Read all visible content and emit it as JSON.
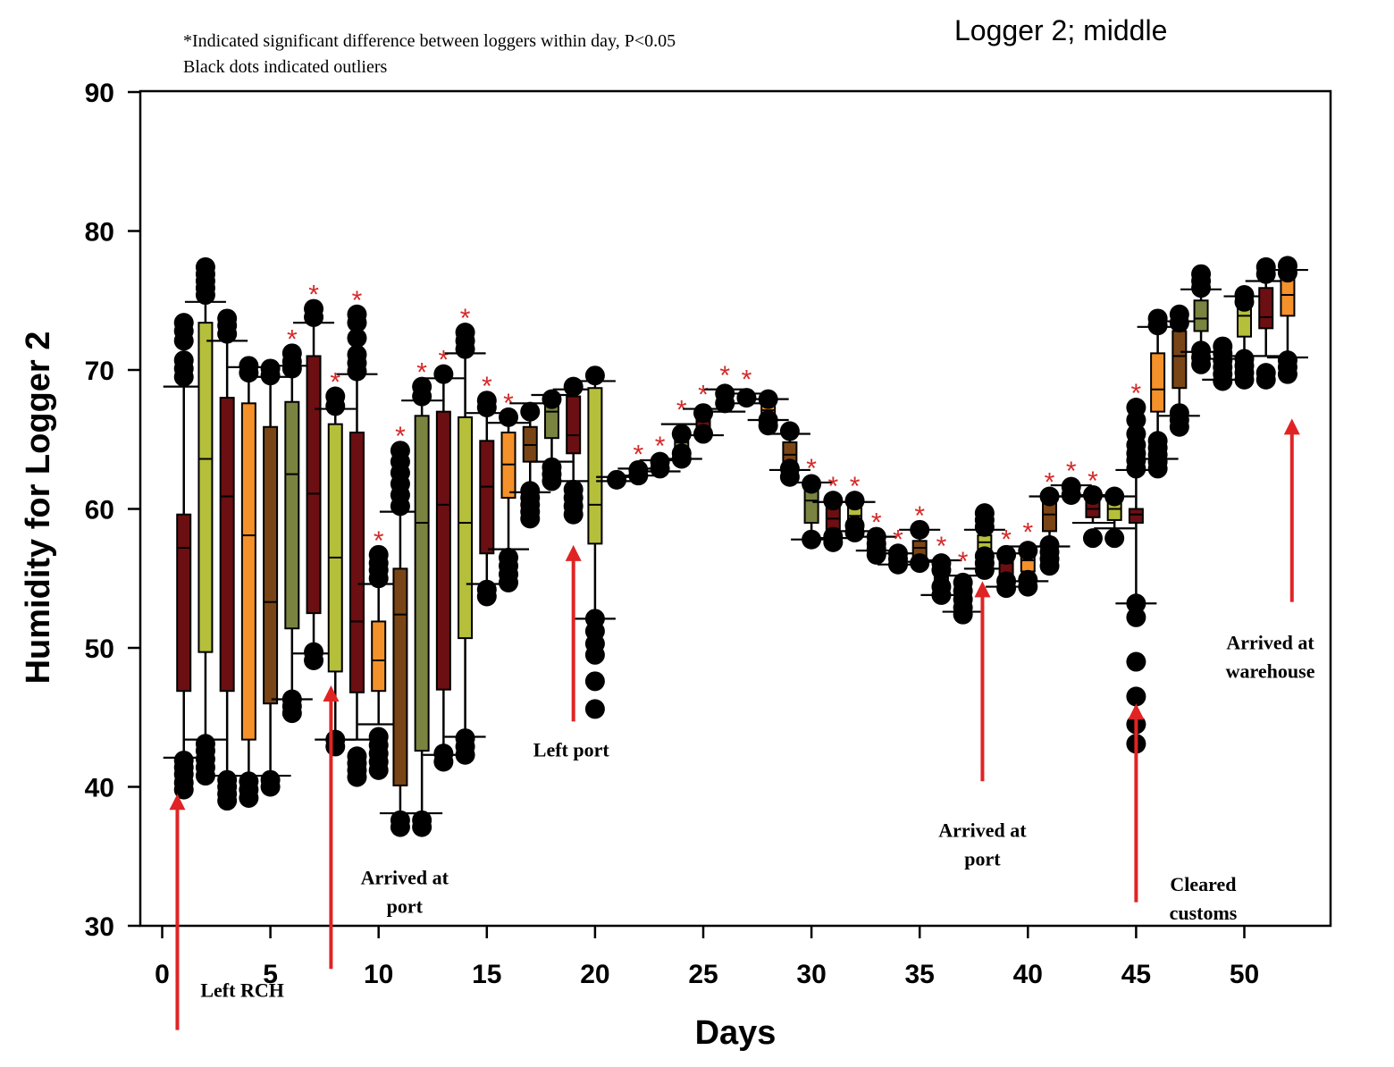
{
  "chart_data": {
    "type": "box",
    "title": "Logger 2; middle",
    "notes": [
      "*Indicated significant difference between loggers within day, P<0.05",
      "Black dots indicated outliers"
    ],
    "xlabel": "Days",
    "ylabel": "Humidity for Logger 2",
    "xlim": [
      -1,
      54
    ],
    "ylim": [
      30,
      90
    ],
    "xticks": [
      0,
      5,
      10,
      15,
      20,
      25,
      30,
      35,
      40,
      45,
      50
    ],
    "yticks": [
      30,
      40,
      50,
      60,
      70,
      80,
      90
    ],
    "colors": {
      "maroon": "#6b0f12",
      "olive_light": "#b5bf3a",
      "orange": "#f5912a",
      "brown": "#7a4516",
      "olive": "#7a8440",
      "star": "#d42a2a",
      "arrow": "#e02424",
      "outlier": "#000000"
    },
    "boxes": [
      {
        "day": 1,
        "color": "maroon",
        "lw": 42.1,
        "q1": 46.9,
        "median": 57.2,
        "q3": 59.6,
        "uw": 68.8,
        "outliers": [
          39.8,
          40.3,
          40.9,
          41.4,
          41.9,
          69.5,
          70.1,
          70.7,
          72.1,
          72.8,
          73.4
        ],
        "star": false
      },
      {
        "day": 2,
        "color": "olive_light",
        "lw": 43.4,
        "q1": 49.7,
        "median": 63.6,
        "q3": 73.4,
        "uw": 74.9,
        "outliers": [
          40.8,
          41.4,
          42.0,
          42.6,
          43.1,
          75.4,
          75.9,
          76.4,
          76.9,
          77.4
        ],
        "star": false
      },
      {
        "day": 3,
        "color": "maroon",
        "lw": 40.8,
        "q1": 46.9,
        "median": 60.9,
        "q3": 68.0,
        "uw": 72.1,
        "outliers": [
          39.0,
          39.5,
          40.0,
          40.5,
          72.6,
          73.2,
          73.7
        ],
        "star": false
      },
      {
        "day": 4,
        "color": "orange",
        "lw": 40.8,
        "q1": 43.4,
        "median": 58.1,
        "q3": 67.6,
        "uw": 70.2,
        "outliers": [
          39.2,
          39.8,
          40.4,
          69.8,
          70.3
        ],
        "star": false
      },
      {
        "day": 5,
        "color": "brown",
        "lw": 40.8,
        "q1": 46.0,
        "median": 53.3,
        "q3": 65.9,
        "uw": 69.5,
        "outliers": [
          40.0,
          40.5,
          69.6,
          70.1
        ],
        "star": false
      },
      {
        "day": 6,
        "color": "olive",
        "lw": 46.3,
        "q1": 51.4,
        "median": 62.5,
        "q3": 67.7,
        "uw": 70.3,
        "outliers": [
          45.3,
          45.8,
          46.3,
          70.1,
          70.6,
          71.2
        ],
        "star": true
      },
      {
        "day": 7,
        "color": "maroon",
        "lw": 49.6,
        "q1": 52.5,
        "median": 61.1,
        "q3": 71.0,
        "uw": 73.4,
        "outliers": [
          49.1,
          49.7,
          73.8,
          74.4
        ],
        "star": true
      },
      {
        "day": 8,
        "color": "olive_light",
        "lw": 43.4,
        "q1": 48.3,
        "median": 56.5,
        "q3": 66.1,
        "uw": 67.2,
        "outliers": [
          42.9,
          43.4,
          67.4,
          68.1
        ],
        "star": true
      },
      {
        "day": 9,
        "color": "maroon",
        "lw": 43.4,
        "q1": 46.8,
        "median": 51.9,
        "q3": 65.5,
        "uw": 69.7,
        "outliers": [
          40.7,
          41.2,
          41.7,
          42.2,
          69.9,
          70.5,
          71.1,
          72.3,
          73.4,
          74.0
        ],
        "star": true
      },
      {
        "day": 10,
        "color": "orange",
        "lw": 44.5,
        "q1": 46.9,
        "median": 49.1,
        "q3": 51.9,
        "uw": 54.6,
        "outliers": [
          41.2,
          41.8,
          42.4,
          43.0,
          43.6,
          55.0,
          55.6,
          56.1,
          56.7
        ],
        "star": true
      },
      {
        "day": 11,
        "color": "brown",
        "lw": 38.1,
        "q1": 40.1,
        "median": 52.4,
        "q3": 55.7,
        "uw": 59.8,
        "outliers": [
          37.1,
          37.6,
          60.2,
          61.0,
          61.8,
          62.6,
          63.4,
          64.2
        ],
        "star": true
      },
      {
        "day": 12,
        "color": "olive",
        "lw": 38.1,
        "q1": 42.6,
        "median": 59.0,
        "q3": 66.7,
        "uw": 67.8,
        "outliers": [
          37.1,
          37.6,
          68.1,
          68.8
        ],
        "star": true
      },
      {
        "day": 13,
        "color": "maroon",
        "lw": 42.3,
        "q1": 47.0,
        "median": 60.3,
        "q3": 67.0,
        "uw": 69.4,
        "outliers": [
          41.8,
          42.4,
          69.7
        ],
        "star": true
      },
      {
        "day": 14,
        "color": "olive_light",
        "lw": 43.6,
        "q1": 50.7,
        "median": 59.0,
        "q3": 66.6,
        "uw": 71.2,
        "outliers": [
          42.3,
          42.9,
          43.5,
          71.5,
          72.1,
          72.7
        ],
        "star": true
      },
      {
        "day": 15,
        "color": "maroon",
        "lw": 54.6,
        "q1": 56.8,
        "median": 61.6,
        "q3": 64.9,
        "uw": 66.9,
        "outliers": [
          53.7,
          54.2,
          67.3,
          67.8
        ],
        "star": true
      },
      {
        "day": 16,
        "color": "orange",
        "lw": 57.1,
        "q1": 60.8,
        "median": 63.2,
        "q3": 65.5,
        "uw": 66.2,
        "outliers": [
          54.7,
          55.3,
          55.9,
          56.5,
          66.6
        ],
        "star": true
      },
      {
        "day": 17,
        "color": "brown",
        "lw": 61.2,
        "q1": 63.4,
        "median": 64.6,
        "q3": 65.9,
        "uw": 67.6,
        "outliers": [
          59.3,
          59.8,
          60.3,
          60.8,
          61.3,
          67.0
        ],
        "star": false
      },
      {
        "day": 18,
        "color": "olive",
        "lw": 63.4,
        "q1": 65.1,
        "median": 67.0,
        "q3": 67.6,
        "uw": 68.2,
        "outliers": [
          62.0,
          62.5,
          63.0,
          67.9
        ],
        "star": false
      },
      {
        "day": 19,
        "color": "maroon",
        "lw": 62.0,
        "q1": 64.0,
        "median": 65.3,
        "q3": 68.1,
        "uw": 68.6,
        "outliers": [
          59.6,
          60.2,
          60.8,
          61.4,
          68.8
        ],
        "star": false
      },
      {
        "day": 20,
        "color": "olive_light",
        "lw": 52.1,
        "q1": 57.5,
        "median": 60.3,
        "q3": 68.7,
        "uw": 69.2,
        "outliers": [
          45.6,
          47.6,
          49.5,
          50.3,
          51.2,
          52.1,
          69.6
        ],
        "star": false
      },
      {
        "day": 21,
        "color": "maroon",
        "lw": 62.0,
        "q1": 62.0,
        "median": 62.0,
        "q3": 62.2,
        "uw": 62.3,
        "outliers": [
          62.1
        ],
        "star": false
      },
      {
        "day": 22,
        "color": "orange",
        "lw": 62.4,
        "q1": 62.5,
        "median": 62.6,
        "q3": 62.8,
        "uw": 62.9,
        "outliers": [
          62.4,
          62.8
        ],
        "star": true
      },
      {
        "day": 23,
        "color": "brown",
        "lw": 62.7,
        "q1": 63.0,
        "median": 63.1,
        "q3": 63.3,
        "uw": 63.5,
        "outliers": [
          62.9,
          63.4
        ],
        "star": true
      },
      {
        "day": 24,
        "color": "olive",
        "lw": 63.6,
        "q1": 64.3,
        "median": 64.8,
        "q3": 65.3,
        "uw": 66.1,
        "outliers": [
          63.6,
          64.0,
          65.4
        ],
        "star": true
      },
      {
        "day": 25,
        "color": "maroon",
        "lw": 65.3,
        "q1": 65.8,
        "median": 66.3,
        "q3": 66.8,
        "uw": 67.2,
        "outliers": [
          65.4,
          66.9
        ],
        "star": true
      },
      {
        "day": 26,
        "color": "olive_light",
        "lw": 67.0,
        "q1": 67.3,
        "median": 67.7,
        "q3": 68.2,
        "uw": 68.6,
        "outliers": [
          67.6,
          68.3
        ],
        "star": true
      },
      {
        "day": 27,
        "color": "maroon",
        "lw": 67.6,
        "q1": 67.8,
        "median": 68.0,
        "q3": 68.1,
        "uw": 68.3,
        "outliers": [
          68.0
        ],
        "star": true
      },
      {
        "day": 28,
        "color": "orange",
        "lw": 66.4,
        "q1": 66.7,
        "median": 67.1,
        "q3": 67.5,
        "uw": 67.9,
        "outliers": [
          66.0,
          66.4,
          67.9
        ],
        "star": false
      },
      {
        "day": 29,
        "color": "brown",
        "lw": 62.8,
        "q1": 63.4,
        "median": 63.9,
        "q3": 64.8,
        "uw": 65.4,
        "outliers": [
          62.3,
          62.9,
          65.6
        ],
        "star": false
      },
      {
        "day": 30,
        "color": "olive",
        "lw": 57.8,
        "q1": 59.0,
        "median": 60.6,
        "q3": 61.5,
        "uw": 61.9,
        "outliers": [
          57.8,
          61.8
        ],
        "star": true
      },
      {
        "day": 31,
        "color": "maroon",
        "lw": 57.9,
        "q1": 58.5,
        "median": 59.3,
        "q3": 60.1,
        "uw": 60.5,
        "outliers": [
          57.6,
          58.0,
          60.6
        ],
        "star": true
      },
      {
        "day": 32,
        "color": "olive_light",
        "lw": 58.4,
        "q1": 59.0,
        "median": 59.5,
        "q3": 60.1,
        "uw": 60.5,
        "outliers": [
          58.3,
          58.8,
          60.6
        ],
        "star": true
      },
      {
        "day": 33,
        "color": "maroon",
        "lw": 57.0,
        "q1": 57.3,
        "median": 57.4,
        "q3": 57.8,
        "uw": 58.0,
        "outliers": [
          56.7,
          57.1,
          57.5,
          58.0
        ],
        "star": true
      },
      {
        "day": 34,
        "color": "orange",
        "lw": 56.0,
        "q1": 56.2,
        "median": 56.4,
        "q3": 56.6,
        "uw": 56.8,
        "outliers": [
          56.0,
          56.4,
          56.8
        ],
        "star": true
      },
      {
        "day": 35,
        "color": "brown",
        "lw": 56.2,
        "q1": 56.6,
        "median": 57.2,
        "q3": 57.7,
        "uw": 58.5,
        "outliers": [
          56.1,
          58.5
        ],
        "star": true
      },
      {
        "day": 36,
        "color": "olive",
        "lw": 53.8,
        "q1": 54.5,
        "median": 55.2,
        "q3": 55.9,
        "uw": 56.3,
        "outliers": [
          53.8,
          54.4,
          55.6,
          56.1
        ],
        "star": true
      },
      {
        "day": 37,
        "color": "maroon",
        "lw": 52.6,
        "q1": 53.4,
        "median": 54.0,
        "q3": 54.6,
        "uw": 55.2,
        "outliers": [
          52.4,
          52.9,
          53.5,
          54.1,
          54.7
        ],
        "star": true
      },
      {
        "day": 38,
        "color": "olive_light",
        "lw": 55.7,
        "q1": 56.7,
        "median": 57.6,
        "q3": 58.1,
        "uw": 58.5,
        "outliers": [
          55.6,
          56.1,
          56.6,
          58.7,
          59.2,
          59.7
        ],
        "star": false
      },
      {
        "day": 39,
        "color": "maroon",
        "lw": 54.4,
        "q1": 55.2,
        "median": 56.1,
        "q3": 56.6,
        "uw": 56.8,
        "outliers": [
          54.3,
          54.8,
          56.7
        ],
        "star": true
      },
      {
        "day": 40,
        "color": "orange",
        "lw": 54.8,
        "q1": 55.5,
        "median": 56.3,
        "q3": 57.0,
        "uw": 57.3,
        "outliers": [
          54.4,
          54.9,
          57.0
        ],
        "star": true
      },
      {
        "day": 41,
        "color": "brown",
        "lw": 57.3,
        "q1": 58.4,
        "median": 59.6,
        "q3": 60.4,
        "uw": 60.9,
        "outliers": [
          55.9,
          56.4,
          56.9,
          57.4,
          60.9
        ],
        "star": true
      },
      {
        "day": 42,
        "color": "olive",
        "lw": 60.9,
        "q1": 61.1,
        "median": 61.3,
        "q3": 61.5,
        "uw": 61.7,
        "outliers": [
          61.0,
          61.6
        ],
        "star": true
      },
      {
        "day": 43,
        "color": "maroon",
        "lw": 59.0,
        "q1": 59.4,
        "median": 60.0,
        "q3": 60.6,
        "uw": 61.0,
        "outliers": [
          57.9,
          61.0
        ],
        "star": true
      },
      {
        "day": 44,
        "color": "olive_light",
        "lw": 58.6,
        "q1": 59.2,
        "median": 60.0,
        "q3": 60.5,
        "uw": 60.9,
        "outliers": [
          57.9,
          60.9
        ],
        "star": false
      },
      {
        "day": 45,
        "color": "maroon",
        "lw": 53.2,
        "q1": 59.0,
        "median": 59.6,
        "q3": 60.0,
        "uw": 62.8,
        "outliers": [
          43.1,
          44.5,
          46.5,
          49.0,
          52.2,
          53.2,
          62.9,
          63.5,
          64.0,
          64.6,
          65.4,
          66.4,
          67.3
        ],
        "star": true
      },
      {
        "day": 46,
        "color": "orange",
        "lw": 63.6,
        "q1": 67.0,
        "median": 68.6,
        "q3": 71.2,
        "uw": 73.1,
        "outliers": [
          62.9,
          63.4,
          63.9,
          64.4,
          64.9,
          73.2,
          73.7
        ],
        "star": false
      },
      {
        "day": 47,
        "color": "brown",
        "lw": 66.7,
        "q1": 68.7,
        "median": 71.0,
        "q3": 72.8,
        "uw": 73.5,
        "outliers": [
          65.9,
          66.4,
          66.9,
          73.4,
          74.0
        ],
        "star": false
      },
      {
        "day": 48,
        "color": "olive",
        "lw": 71.3,
        "q1": 72.8,
        "median": 73.7,
        "q3": 75.0,
        "uw": 75.8,
        "outliers": [
          70.4,
          70.9,
          71.4,
          75.9,
          76.4,
          76.9
        ],
        "star": false
      },
      {
        "day": 49,
        "color": "maroon",
        "lw": 69.3,
        "q1": 69.6,
        "median": 70.0,
        "q3": 70.3,
        "uw": 70.8,
        "outliers": [
          69.2,
          69.7,
          70.2,
          70.7,
          71.2,
          71.7
        ],
        "star": false
      },
      {
        "day": 50,
        "color": "olive_light",
        "lw": 71.0,
        "q1": 72.4,
        "median": 73.9,
        "q3": 74.8,
        "uw": 75.3,
        "outliers": [
          69.3,
          69.8,
          70.3,
          70.8,
          74.9,
          75.4
        ],
        "star": false
      },
      {
        "day": 51,
        "color": "maroon",
        "lw": 71.0,
        "q1": 73.0,
        "median": 73.8,
        "q3": 75.9,
        "uw": 76.4,
        "outliers": [
          69.3,
          69.8,
          76.9,
          77.4
        ],
        "star": false
      },
      {
        "day": 52,
        "color": "orange",
        "lw": 70.9,
        "q1": 73.9,
        "median": 75.4,
        "q3": 76.8,
        "uw": 77.2,
        "outliers": [
          69.7,
          70.2,
          70.7,
          77.0,
          77.5
        ],
        "star": false
      }
    ],
    "annotations": [
      {
        "lines": [
          "Left RCH"
        ],
        "arrow_x": 0.7,
        "arrow_from": 22.5,
        "arrow_to": 39.5,
        "text_x": 3.7,
        "text_y": 24.9
      },
      {
        "lines": [
          "Arrived at",
          "port"
        ],
        "arrow_x": 7.8,
        "arrow_from": 26.9,
        "arrow_to": 47.3,
        "text_x": 11.2,
        "text_y": 33.0
      },
      {
        "lines": [
          "Left port"
        ],
        "arrow_x": 19.0,
        "arrow_from": 44.7,
        "arrow_to": 57.4,
        "text_x": 18.9,
        "text_y": 42.2
      },
      {
        "lines": [
          "Arrived at",
          "port"
        ],
        "arrow_x": 37.9,
        "arrow_from": 40.4,
        "arrow_to": 54.8,
        "text_x": 37.9,
        "text_y": 36.4
      },
      {
        "lines": [
          "Cleared",
          "customs"
        ],
        "arrow_x": 45.0,
        "arrow_from": 31.7,
        "arrow_to": 46.0,
        "text_x": 48.1,
        "text_y": 32.5
      },
      {
        "lines": [
          "Arrived at",
          "warehouse"
        ],
        "arrow_x": 52.2,
        "arrow_from": 53.3,
        "arrow_to": 66.5,
        "text_x": 51.2,
        "text_y": 49.9
      }
    ]
  }
}
